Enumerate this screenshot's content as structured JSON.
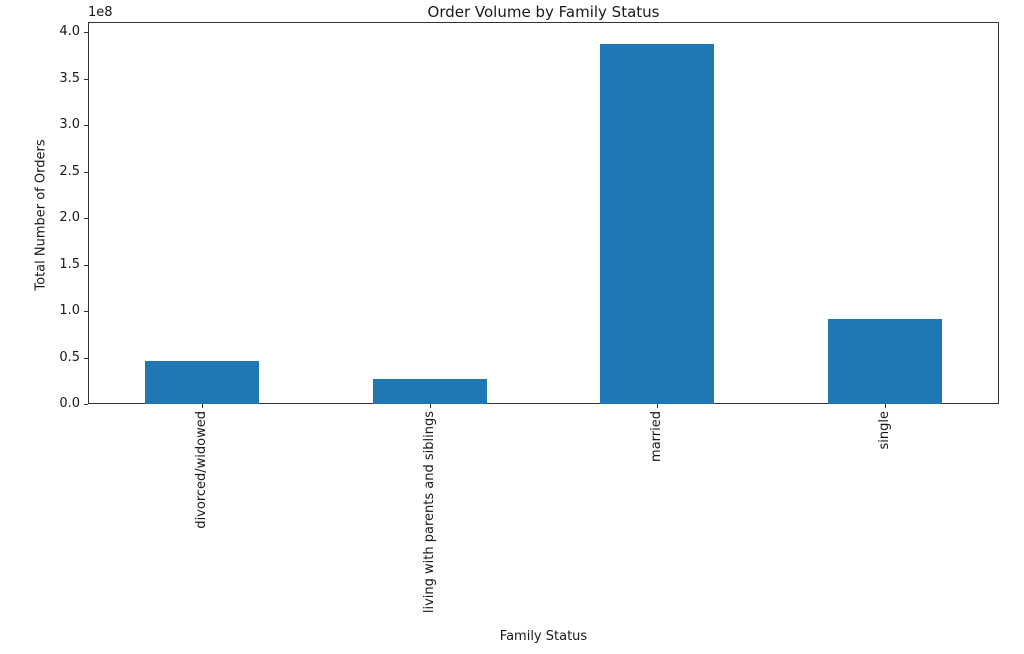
{
  "chart_data": {
    "type": "bar",
    "title": "Order Volume by Family Status",
    "xlabel": "Family Status",
    "ylabel": "Total Number of Orders",
    "y_offset_text": "1e8",
    "categories": [
      "divorced/widowed",
      "living with parents and siblings",
      "married",
      "single"
    ],
    "values": [
      46600000,
      26900000,
      387700000,
      92000000
    ],
    "ylim": [
      0,
      411200000
    ],
    "ytick_values": [
      0,
      50000000,
      100000000,
      150000000,
      200000000,
      250000000,
      300000000,
      350000000,
      400000000
    ],
    "ytick_labels": [
      "0.0",
      "0.5",
      "1.0",
      "1.5",
      "2.0",
      "2.5",
      "3.0",
      "3.5",
      "4.0"
    ],
    "bar_color": "#1f77b4",
    "bar_rel_width": 0.5,
    "grid": false,
    "legend": "none"
  }
}
